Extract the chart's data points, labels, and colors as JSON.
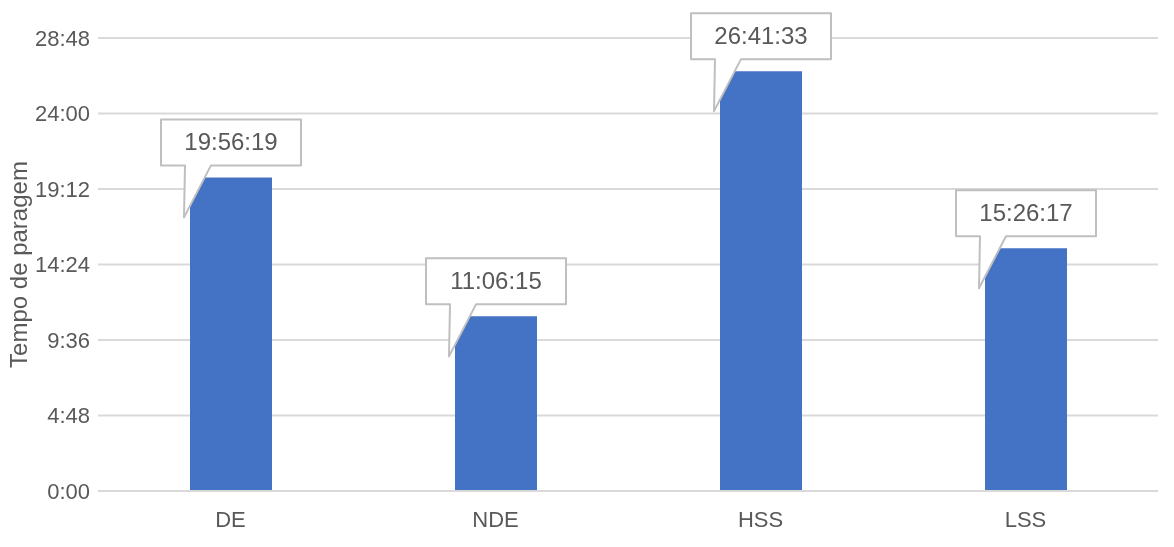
{
  "chart_data": {
    "type": "bar",
    "ylabel": "Tempo de paragem",
    "categories": [
      "DE",
      "NDE",
      "HSS",
      "LSS"
    ],
    "values": [
      19.9386,
      11.1042,
      26.6925,
      15.4381
    ],
    "value_labels": [
      "19:56:19",
      "11:06:15",
      "26:41:33",
      "15:26:17"
    ],
    "color": "#4472c4",
    "ylim": [
      0,
      28.8
    ],
    "yticks": [
      {
        "value": 0,
        "label": "0:00"
      },
      {
        "value": 4.8,
        "label": "4:48"
      },
      {
        "value": 9.6,
        "label": "9:36"
      },
      {
        "value": 14.4,
        "label": "14:24"
      },
      {
        "value": 19.2,
        "label": "19:12"
      },
      {
        "value": 24,
        "label": "24:00"
      },
      {
        "value": 28.8,
        "label": "28:48"
      }
    ],
    "grid": "y"
  }
}
